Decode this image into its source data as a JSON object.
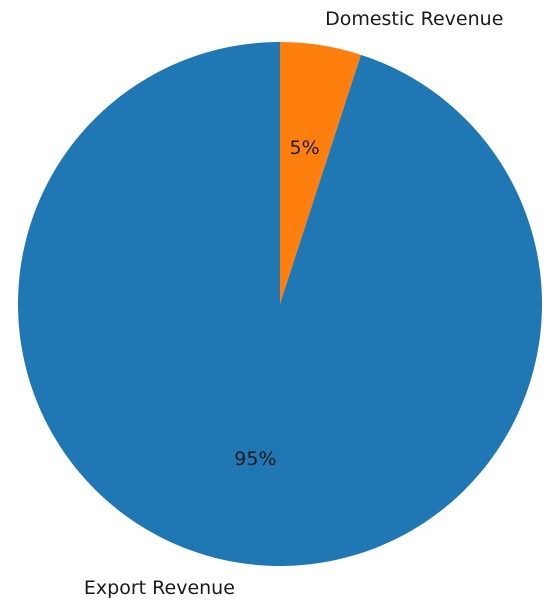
{
  "chart_data": {
    "type": "pie",
    "title": "",
    "categories": [
      "Domestic Revenue",
      "Export Revenue"
    ],
    "values": [
      5,
      95
    ],
    "value_labels": [
      "5%",
      "95%"
    ],
    "colors": [
      "#ff7f0e",
      "#1f77b4"
    ],
    "start_angle_deg": 90,
    "direction": "clockwise",
    "legend": "none"
  }
}
